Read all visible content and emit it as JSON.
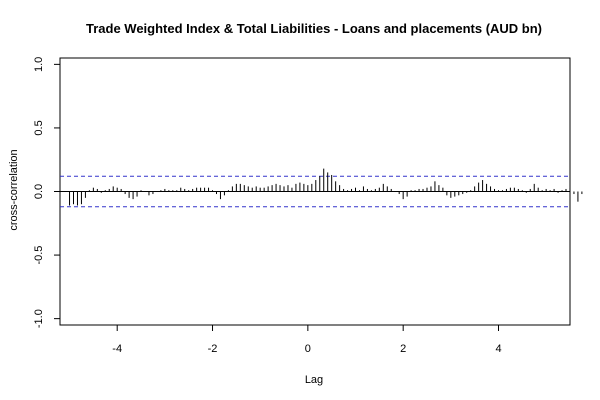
{
  "chart_data": {
    "type": "bar",
    "title": "Trade Weighted Index & Total Liabilities - Loans and placements (AUD bn)",
    "xlabel": "Lag",
    "ylabel": "cross-correlation",
    "xlim": [
      -5.2,
      5.5
    ],
    "ylim": [
      -1.05,
      1.05
    ],
    "xticks": [
      -4,
      -2,
      0,
      2,
      4
    ],
    "xtick_labels": [
      "-4",
      "-2",
      "0",
      "2",
      "4"
    ],
    "yticks": [
      -1.0,
      -0.5,
      0.0,
      0.5,
      1.0
    ],
    "ytick_labels": [
      "-1.0",
      "-0.5",
      "0.0",
      "0.5",
      "1.0"
    ],
    "ci_upper": 0.12,
    "ci_lower": -0.12,
    "colors": {
      "bars": "#000000",
      "ci": "#3333cc",
      "zero_line": "#000000",
      "frame": "#000000"
    },
    "lag_start": -5.0,
    "lag_step": 0.08333,
    "values": [
      -0.11,
      -0.1,
      -0.11,
      -0.1,
      -0.05,
      0.01,
      0.03,
      0.02,
      -0.01,
      0.01,
      0.02,
      0.04,
      0.03,
      0.02,
      -0.02,
      -0.05,
      -0.06,
      -0.04,
      0.01,
      0.0,
      -0.03,
      -0.02,
      0.0,
      0.01,
      0.02,
      0.01,
      0.01,
      0.01,
      0.03,
      0.02,
      0.01,
      0.02,
      0.03,
      0.03,
      0.03,
      0.03,
      0.01,
      -0.02,
      -0.06,
      -0.03,
      0.01,
      0.04,
      0.06,
      0.06,
      0.05,
      0.04,
      0.03,
      0.04,
      0.03,
      0.03,
      0.04,
      0.05,
      0.06,
      0.05,
      0.04,
      0.05,
      0.03,
      0.06,
      0.07,
      0.06,
      0.05,
      0.06,
      0.09,
      0.12,
      0.18,
      0.15,
      0.13,
      0.08,
      0.05,
      0.02,
      0.01,
      0.02,
      0.03,
      0.01,
      0.04,
      0.02,
      0.01,
      0.02,
      0.03,
      0.06,
      0.04,
      0.02,
      0.0,
      -0.02,
      -0.06,
      -0.04,
      0.01,
      0.01,
      0.02,
      0.02,
      0.03,
      0.04,
      0.08,
      0.05,
      0.03,
      -0.03,
      -0.05,
      -0.04,
      -0.03,
      -0.02,
      -0.01,
      0.01,
      0.04,
      0.07,
      0.09,
      0.06,
      0.04,
      0.02,
      0.01,
      0.01,
      0.02,
      0.03,
      0.03,
      0.02,
      0.01,
      -0.01,
      0.02,
      0.06,
      0.03,
      0.01,
      0.02,
      0.01,
      0.02,
      -0.01,
      0.01,
      0.02,
      0.03,
      -0.02,
      -0.08,
      -0.02
    ]
  }
}
